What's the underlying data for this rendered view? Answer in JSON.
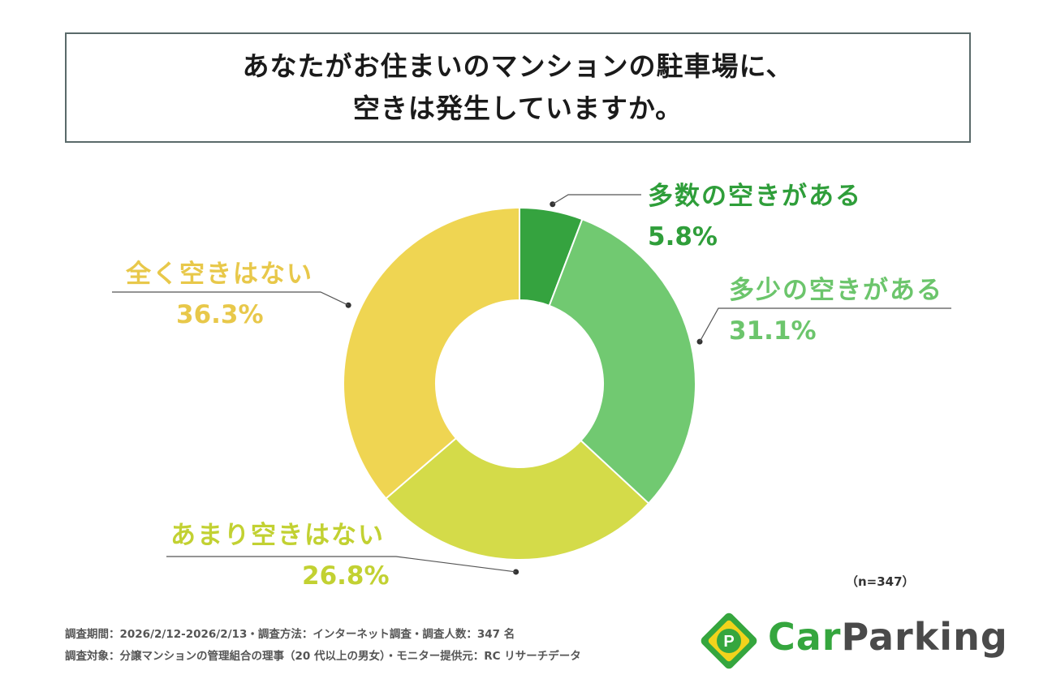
{
  "title": {
    "line1": "あなたがお住まいのマンションの駐車場に、",
    "line2": "空きは発生していますか。"
  },
  "chart_data": {
    "type": "pie",
    "donut": true,
    "categories": [
      "多数の空きがある",
      "多少の空きがある",
      "あまり空きはない",
      "全く空きはない"
    ],
    "values": [
      5.8,
      31.1,
      26.8,
      36.3
    ],
    "value_labels": [
      "5.8%",
      "31.1%",
      "26.8%",
      "36.3%"
    ],
    "colors": [
      "#35a33f",
      "#71c971",
      "#d4db49",
      "#efd552"
    ],
    "label_colors": [
      "#2f9e3a",
      "#6cc56c",
      "#c2d132",
      "#e8c84a"
    ],
    "start": "12 o'clock, clockwise",
    "sample_size": "（n=347）"
  },
  "footnotes": {
    "line1": "調査期間：2026/2/12-2026/2/13・調査方法：インターネット調査・調査人数：347 名",
    "line2": "調査対象：分譲マンションの管理組合の理事（20 代以上の男女）・モニター提供元：RC リサーチデータ"
  },
  "logo": {
    "icon_letter": "P",
    "text_car": "Car",
    "text_parking": "Parking",
    "colors": {
      "green": "#35a63e",
      "yellow": "#f1d31c",
      "gray": "#4a4a4a"
    }
  }
}
